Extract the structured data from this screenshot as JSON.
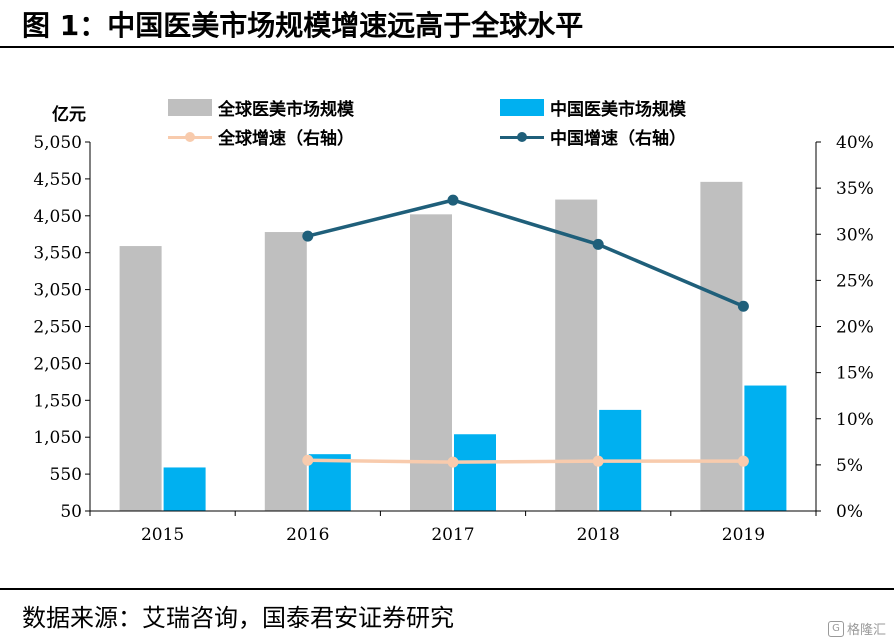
{
  "header": {
    "title": "图 1：中国医美市场规模增速远高于全球水平"
  },
  "footer": {
    "source": "数据来源：艾瑞咨询，国泰君安证券研究"
  },
  "watermark": {
    "text": "格隆汇",
    "icon": "G-logo-icon"
  },
  "chart_data": {
    "type": "bar",
    "unit_label": "亿元",
    "categories": [
      "2015",
      "2016",
      "2017",
      "2018",
      "2019"
    ],
    "series": [
      {
        "name": "全球医美市场规模",
        "type": "bar",
        "axis": "left",
        "color": "#bfbfbf",
        "values": [
          3640,
          3830,
          4070,
          4270,
          4510
        ]
      },
      {
        "name": "中国医美市场规模",
        "type": "bar",
        "axis": "left",
        "color": "#00b0f0",
        "values": [
          640,
          820,
          1090,
          1420,
          1750
        ]
      },
      {
        "name": "全球增速（右轴）",
        "type": "line",
        "axis": "right",
        "color": "#f8cbad",
        "values": [
          null,
          5.5,
          5.3,
          5.4,
          5.4
        ]
      },
      {
        "name": "中国增速（右轴）",
        "type": "line",
        "axis": "right",
        "color": "#1f5f7a",
        "values": [
          null,
          29.8,
          33.7,
          28.9,
          22.2
        ]
      }
    ],
    "y_left": {
      "min": 50,
      "max": 5050,
      "ticks": [
        "50",
        "550",
        "1,050",
        "1,550",
        "2,050",
        "2,550",
        "3,050",
        "3,550",
        "4,050",
        "4,550",
        "5,050"
      ],
      "tick_values": [
        50,
        550,
        1050,
        1550,
        2050,
        2550,
        3050,
        3550,
        4050,
        4550,
        5050
      ]
    },
    "y_right": {
      "min": 0,
      "max": 40,
      "ticks": [
        "0%",
        "5%",
        "10%",
        "15%",
        "20%",
        "25%",
        "30%",
        "35%",
        "40%"
      ],
      "tick_values": [
        0,
        5,
        10,
        15,
        20,
        25,
        30,
        35,
        40
      ]
    },
    "grid": false,
    "legend_position": "top"
  }
}
